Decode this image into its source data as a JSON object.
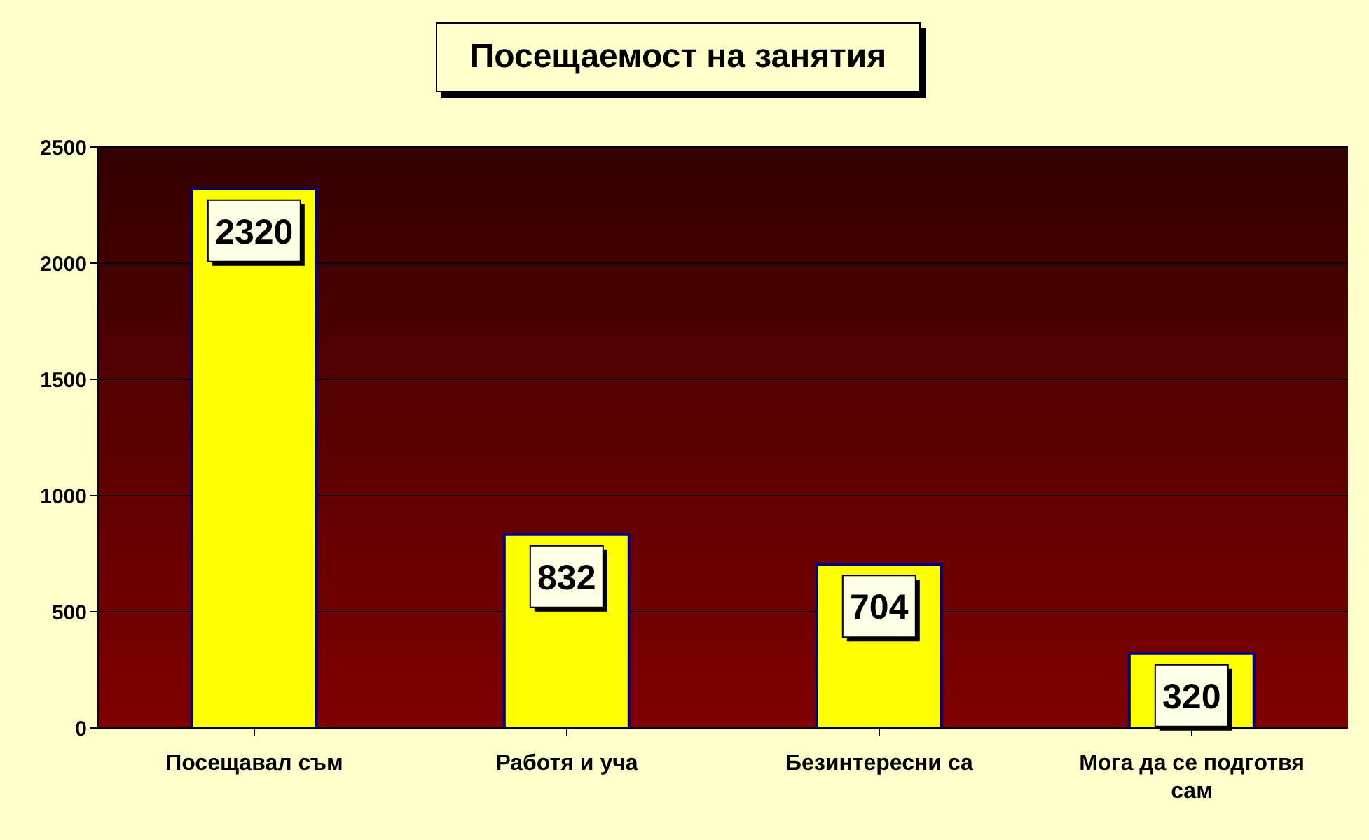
{
  "chart_data": {
    "type": "bar",
    "title": "Посещаемост на занятия",
    "categories": [
      "Посещавал съм",
      "Работя и уча",
      "Безинтересни са",
      "Мога да се подготвя сам"
    ],
    "values": [
      2320,
      832,
      704,
      320
    ],
    "color": "#ffff00",
    "ylim": [
      0,
      2500
    ],
    "yticks": [
      0,
      500,
      1000,
      1500,
      2000,
      2500
    ],
    "grid": "y",
    "data_labels": true
  }
}
